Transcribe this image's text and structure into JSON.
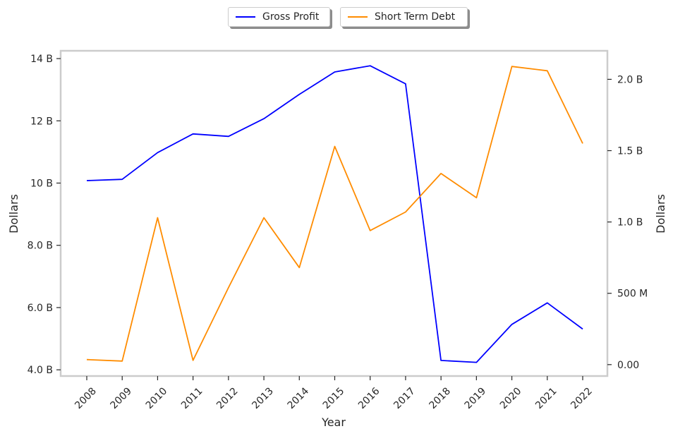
{
  "chart_data": {
    "type": "line",
    "title": "",
    "xlabel": "Year",
    "ylabel_left": "Dollars",
    "ylabel_right": "Dollars",
    "categories": [
      "2008",
      "2009",
      "2010",
      "2011",
      "2012",
      "2013",
      "2014",
      "2015",
      "2016",
      "2017",
      "2018",
      "2019",
      "2020",
      "2021",
      "2022"
    ],
    "series": [
      {
        "name": "Gross Profit",
        "axis": "left",
        "color": "#0000ff",
        "values": [
          10.08,
          10.12,
          10.98,
          11.58,
          11.5,
          12.07,
          12.85,
          13.57,
          13.77,
          13.19,
          4.3,
          4.24,
          5.46,
          6.15,
          5.31
        ],
        "unit": "B"
      },
      {
        "name": "Short Term Debt",
        "axis": "right",
        "color": "#ff8c00",
        "values": [
          0.035,
          0.025,
          1.03,
          0.03,
          0.54,
          1.03,
          0.68,
          1.53,
          0.94,
          1.07,
          1.34,
          1.17,
          2.09,
          2.06,
          1.55
        ],
        "unit": "B"
      }
    ],
    "ylim_left": [
      3.8,
      14.25
    ],
    "ylim_right": [
      -0.08,
      2.2
    ],
    "yticks_left": [
      {
        "value": 4,
        "label": "4.0 B"
      },
      {
        "value": 6,
        "label": "6.0 B"
      },
      {
        "value": 8,
        "label": "8.0 B"
      },
      {
        "value": 10,
        "label": "10 B"
      },
      {
        "value": 12,
        "label": "12 B"
      },
      {
        "value": 14,
        "label": "14 B"
      }
    ],
    "yticks_right": [
      {
        "value": 0,
        "label": "0.00"
      },
      {
        "value": 0.5,
        "label": "500 M"
      },
      {
        "value": 1.0,
        "label": "1.0 B"
      },
      {
        "value": 1.5,
        "label": "1.5 B"
      },
      {
        "value": 2.0,
        "label": "2.0 B"
      }
    ],
    "grid": false,
    "legend_position": "top-center"
  }
}
